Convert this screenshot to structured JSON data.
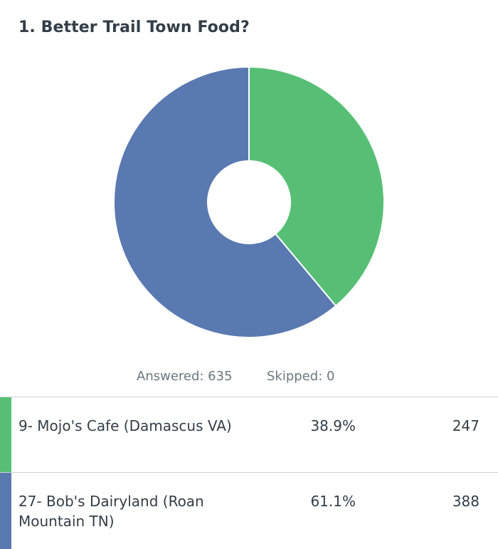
{
  "question": {
    "title": "1. Better Trail Town Food?"
  },
  "summary": {
    "answered": "Answered: 635",
    "skipped": "Skipped: 0"
  },
  "colors": {
    "green": "#57bf75",
    "blue": "#5a79b0"
  },
  "chart_data": {
    "type": "pie",
    "donut": true,
    "title": "1. Better Trail Town Food?",
    "categories": [
      "9- Mojo's Cafe (Damascus VA)",
      "27- Bob's Dairyland (Roan Mountain TN)"
    ],
    "values": [
      38.9,
      61.1
    ],
    "counts": [
      247,
      388
    ],
    "colors": [
      "#57bf75",
      "#5a79b0"
    ],
    "start": "top, clockwise"
  },
  "results": [
    {
      "label": "9- Mojo's Cafe (Damascus VA)",
      "percent": "38.9%",
      "count": "247",
      "color": "#57bf75"
    },
    {
      "label": "27- Bob's Dairyland (Roan Mountain TN)",
      "percent": "61.1%",
      "count": "388",
      "color": "#5a79b0"
    }
  ]
}
